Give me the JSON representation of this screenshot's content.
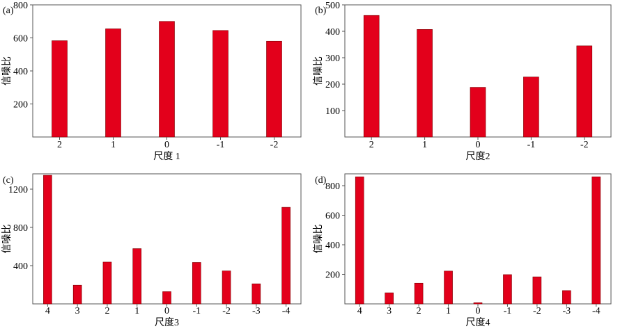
{
  "chart_data": [
    {
      "panel": "(a)",
      "type": "bar",
      "xlabel": "尺度 1",
      "ylabel": "信噪比",
      "categories": [
        "2",
        "1",
        "0",
        "-1",
        "-2"
      ],
      "values": [
        583,
        655,
        700,
        645,
        580
      ],
      "ylim": [
        0,
        800
      ],
      "yticks": [
        200,
        400,
        600,
        800
      ],
      "grid": false,
      "bar_color": "#e3001b"
    },
    {
      "panel": "(b)",
      "type": "bar",
      "xlabel": "尺度2",
      "ylabel": "信噪比",
      "categories": [
        "2",
        "1",
        "0",
        "-1",
        "-2"
      ],
      "values": [
        460,
        407,
        188,
        227,
        345
      ],
      "ylim": [
        0,
        500
      ],
      "yticks": [
        100,
        200,
        300,
        400,
        500
      ],
      "grid": false,
      "bar_color": "#e3001b"
    },
    {
      "panel": "(c)",
      "type": "bar",
      "xlabel": "尺度3",
      "ylabel": "信噪比",
      "categories": [
        "4",
        "3",
        "2",
        "1",
        "0",
        "-1",
        "-2",
        "-3",
        "-4"
      ],
      "values": [
        1345,
        195,
        437,
        578,
        128,
        433,
        345,
        210,
        1010
      ],
      "ylim": [
        0,
        1360
      ],
      "yticks": [
        400,
        800,
        1200
      ],
      "grid": false,
      "bar_color": "#e3001b"
    },
    {
      "panel": "(d)",
      "type": "bar",
      "xlabel": "尺度4",
      "ylabel": "信噪比",
      "categories": [
        "4",
        "3",
        "2",
        "1",
        "0",
        "-1",
        "-2",
        "-3",
        "-4"
      ],
      "values": [
        860,
        75,
        140,
        222,
        8,
        198,
        183,
        90,
        860
      ],
      "ylim": [
        0,
        880
      ],
      "yticks": [
        200,
        400,
        600,
        800
      ],
      "grid": false,
      "bar_color": "#e3001b"
    }
  ]
}
